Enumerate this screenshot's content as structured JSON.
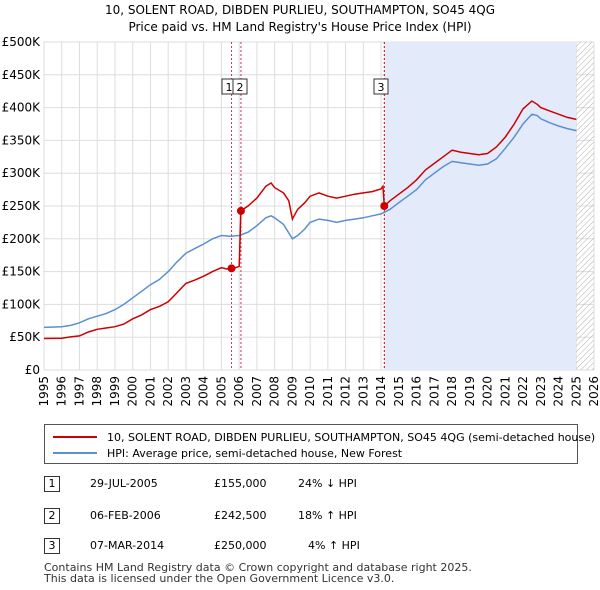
{
  "chart_data": {
    "type": "line",
    "title": "10, SOLENT ROAD, DIBDEN PURLIEU, SOUTHAMPTON, SO45 4QG",
    "subtitle": "Price paid vs. HM Land Registry's House Price Index (HPI)",
    "xlim": [
      1995,
      2026
    ],
    "ylim": [
      0,
      500000
    ],
    "x_ticks": [
      "1995",
      "1996",
      "1997",
      "1998",
      "1999",
      "2000",
      "2001",
      "2002",
      "2003",
      "2004",
      "2005",
      "2006",
      "2007",
      "2008",
      "2009",
      "2010",
      "2011",
      "2012",
      "2013",
      "2014",
      "2015",
      "2016",
      "2017",
      "2018",
      "2019",
      "2020",
      "2021",
      "2022",
      "2023",
      "2024",
      "2025",
      "2026"
    ],
    "y_ticks": [
      {
        "value": 0,
        "label": "£0"
      },
      {
        "value": 50000,
        "label": "£50K"
      },
      {
        "value": 100000,
        "label": "£100K"
      },
      {
        "value": 150000,
        "label": "£150K"
      },
      {
        "value": 200000,
        "label": "£200K"
      },
      {
        "value": 250000,
        "label": "£250K"
      },
      {
        "value": 300000,
        "label": "£300K"
      },
      {
        "value": 350000,
        "label": "£350K"
      },
      {
        "value": 400000,
        "label": "£400K"
      },
      {
        "value": 450000,
        "label": "£450K"
      },
      {
        "value": 500000,
        "label": "£500K"
      }
    ],
    "shaded_region": {
      "from": 2014.18,
      "to": 2025.0
    },
    "future_region": {
      "from": 2025.0,
      "to": 2026.0
    },
    "series": [
      {
        "name": "10, SOLENT ROAD, DIBDEN PURLIEU, SOUTHAMPTON, SO45 4QG (semi-detached house)",
        "color": "#cc0000",
        "points": [
          [
            1995.0,
            48000
          ],
          [
            1996.0,
            48500
          ],
          [
            1996.5,
            50500
          ],
          [
            1997.0,
            52000
          ],
          [
            1997.5,
            58000
          ],
          [
            1998.0,
            62000
          ],
          [
            1998.5,
            64000
          ],
          [
            1999.0,
            66000
          ],
          [
            1999.5,
            70000
          ],
          [
            2000.0,
            78000
          ],
          [
            2000.5,
            84000
          ],
          [
            2001.0,
            92000
          ],
          [
            2001.5,
            97000
          ],
          [
            2002.0,
            104000
          ],
          [
            2002.5,
            118000
          ],
          [
            2003.0,
            132000
          ],
          [
            2003.5,
            137000
          ],
          [
            2004.0,
            143000
          ],
          [
            2004.5,
            150000
          ],
          [
            2005.0,
            156000
          ],
          [
            2005.3,
            154000
          ],
          [
            2005.57,
            155000
          ],
          [
            2005.8,
            156000
          ],
          [
            2006.0,
            158000
          ],
          [
            2006.1,
            242500
          ],
          [
            2006.5,
            250000
          ],
          [
            2007.0,
            262000
          ],
          [
            2007.5,
            280000
          ],
          [
            2007.8,
            285000
          ],
          [
            2008.0,
            278000
          ],
          [
            2008.5,
            270000
          ],
          [
            2008.8,
            258000
          ],
          [
            2009.0,
            230000
          ],
          [
            2009.3,
            245000
          ],
          [
            2009.7,
            255000
          ],
          [
            2010.0,
            265000
          ],
          [
            2010.5,
            270000
          ],
          [
            2011.0,
            265000
          ],
          [
            2011.5,
            262000
          ],
          [
            2012.0,
            265000
          ],
          [
            2012.5,
            268000
          ],
          [
            2013.0,
            270000
          ],
          [
            2013.5,
            272000
          ],
          [
            2014.0,
            276000
          ],
          [
            2014.1,
            280000
          ],
          [
            2014.18,
            250000
          ],
          [
            2014.5,
            258000
          ],
          [
            2015.0,
            268000
          ],
          [
            2015.5,
            278000
          ],
          [
            2016.0,
            290000
          ],
          [
            2016.5,
            305000
          ],
          [
            2017.0,
            315000
          ],
          [
            2017.5,
            325000
          ],
          [
            2018.0,
            335000
          ],
          [
            2018.5,
            332000
          ],
          [
            2019.0,
            330000
          ],
          [
            2019.5,
            328000
          ],
          [
            2020.0,
            330000
          ],
          [
            2020.5,
            340000
          ],
          [
            2021.0,
            355000
          ],
          [
            2021.5,
            375000
          ],
          [
            2022.0,
            398000
          ],
          [
            2022.5,
            410000
          ],
          [
            2022.8,
            405000
          ],
          [
            2023.0,
            400000
          ],
          [
            2023.5,
            395000
          ],
          [
            2024.0,
            390000
          ],
          [
            2024.5,
            385000
          ],
          [
            2025.0,
            382000
          ]
        ]
      },
      {
        "name": "HPI: Average price, semi-detached house, New Forest",
        "color": "#5a8fd0",
        "points": [
          [
            1995.0,
            65000
          ],
          [
            1996.0,
            66000
          ],
          [
            1996.5,
            68000
          ],
          [
            1997.0,
            72000
          ],
          [
            1997.5,
            78000
          ],
          [
            1998.0,
            82000
          ],
          [
            1998.5,
            86000
          ],
          [
            1999.0,
            92000
          ],
          [
            1999.5,
            100000
          ],
          [
            2000.0,
            110000
          ],
          [
            2000.5,
            120000
          ],
          [
            2001.0,
            130000
          ],
          [
            2001.5,
            138000
          ],
          [
            2002.0,
            150000
          ],
          [
            2002.5,
            165000
          ],
          [
            2003.0,
            178000
          ],
          [
            2003.5,
            185000
          ],
          [
            2004.0,
            192000
          ],
          [
            2004.5,
            200000
          ],
          [
            2005.0,
            205000
          ],
          [
            2005.5,
            204000
          ],
          [
            2006.0,
            205000
          ],
          [
            2006.5,
            210000
          ],
          [
            2007.0,
            220000
          ],
          [
            2007.5,
            232000
          ],
          [
            2007.8,
            235000
          ],
          [
            2008.0,
            232000
          ],
          [
            2008.5,
            222000
          ],
          [
            2009.0,
            200000
          ],
          [
            2009.3,
            205000
          ],
          [
            2009.7,
            215000
          ],
          [
            2010.0,
            225000
          ],
          [
            2010.5,
            230000
          ],
          [
            2011.0,
            228000
          ],
          [
            2011.5,
            225000
          ],
          [
            2012.0,
            228000
          ],
          [
            2012.5,
            230000
          ],
          [
            2013.0,
            232000
          ],
          [
            2013.5,
            235000
          ],
          [
            2014.0,
            238000
          ],
          [
            2014.5,
            245000
          ],
          [
            2015.0,
            255000
          ],
          [
            2015.5,
            265000
          ],
          [
            2016.0,
            275000
          ],
          [
            2016.5,
            290000
          ],
          [
            2017.0,
            300000
          ],
          [
            2017.5,
            310000
          ],
          [
            2018.0,
            318000
          ],
          [
            2018.5,
            316000
          ],
          [
            2019.0,
            314000
          ],
          [
            2019.5,
            312000
          ],
          [
            2020.0,
            314000
          ],
          [
            2020.5,
            322000
          ],
          [
            2021.0,
            338000
          ],
          [
            2021.5,
            355000
          ],
          [
            2022.0,
            375000
          ],
          [
            2022.5,
            390000
          ],
          [
            2022.8,
            388000
          ],
          [
            2023.0,
            383000
          ],
          [
            2023.5,
            377000
          ],
          [
            2024.0,
            372000
          ],
          [
            2024.5,
            368000
          ],
          [
            2025.0,
            365000
          ]
        ]
      }
    ],
    "sale_markers": [
      {
        "label": "1",
        "x": 2005.57,
        "y": 155000
      },
      {
        "label": "2",
        "x": 2006.1,
        "y": 242500
      },
      {
        "label": "3",
        "x": 2014.18,
        "y": 250000
      }
    ]
  },
  "legend": {
    "items": [
      {
        "label": "10, SOLENT ROAD, DIBDEN PURLIEU, SOUTHAMPTON, SO45 4QG (semi-detached house)",
        "color": "#cc0000"
      },
      {
        "label": "HPI: Average price, semi-detached house, New Forest",
        "color": "#5a8fd0"
      }
    ]
  },
  "sales": [
    {
      "num": "1",
      "date": "29-JUL-2005",
      "price": "£155,000",
      "hpi": "24% ↓ HPI"
    },
    {
      "num": "2",
      "date": "06-FEB-2006",
      "price": "£242,500",
      "hpi": "18% ↑ HPI"
    },
    {
      "num": "3",
      "date": "07-MAR-2014",
      "price": "£250,000",
      "hpi": "4% ↑ HPI"
    }
  ],
  "footer": {
    "line1": "Contains HM Land Registry data © Crown copyright and database right 2025.",
    "line2": "This data is licensed under the Open Government Licence v3.0."
  }
}
